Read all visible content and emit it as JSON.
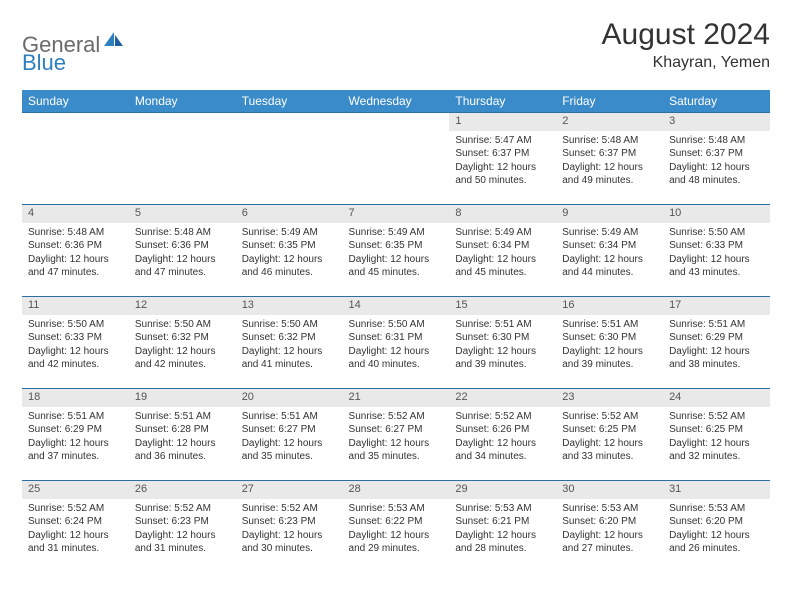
{
  "logo": {
    "text1": "General",
    "text2": "Blue"
  },
  "title": "August 2024",
  "location": "Khayran, Yemen",
  "colors": {
    "header_bg": "#3a8bc9",
    "header_text": "#ffffff",
    "daynum_bg": "#e9e9e9",
    "border": "#2f6fa0",
    "logo_gray": "#6a6a6a",
    "logo_blue": "#2f7fbf"
  },
  "weekdays": [
    "Sunday",
    "Monday",
    "Tuesday",
    "Wednesday",
    "Thursday",
    "Friday",
    "Saturday"
  ],
  "weeks": [
    {
      "nums": [
        "",
        "",
        "",
        "",
        "1",
        "2",
        "3"
      ],
      "cells": [
        null,
        null,
        null,
        null,
        {
          "sunrise": "5:47 AM",
          "sunset": "6:37 PM",
          "daylight": "12 hours and 50 minutes."
        },
        {
          "sunrise": "5:48 AM",
          "sunset": "6:37 PM",
          "daylight": "12 hours and 49 minutes."
        },
        {
          "sunrise": "5:48 AM",
          "sunset": "6:37 PM",
          "daylight": "12 hours and 48 minutes."
        }
      ]
    },
    {
      "nums": [
        "4",
        "5",
        "6",
        "7",
        "8",
        "9",
        "10"
      ],
      "cells": [
        {
          "sunrise": "5:48 AM",
          "sunset": "6:36 PM",
          "daylight": "12 hours and 47 minutes."
        },
        {
          "sunrise": "5:48 AM",
          "sunset": "6:36 PM",
          "daylight": "12 hours and 47 minutes."
        },
        {
          "sunrise": "5:49 AM",
          "sunset": "6:35 PM",
          "daylight": "12 hours and 46 minutes."
        },
        {
          "sunrise": "5:49 AM",
          "sunset": "6:35 PM",
          "daylight": "12 hours and 45 minutes."
        },
        {
          "sunrise": "5:49 AM",
          "sunset": "6:34 PM",
          "daylight": "12 hours and 45 minutes."
        },
        {
          "sunrise": "5:49 AM",
          "sunset": "6:34 PM",
          "daylight": "12 hours and 44 minutes."
        },
        {
          "sunrise": "5:50 AM",
          "sunset": "6:33 PM",
          "daylight": "12 hours and 43 minutes."
        }
      ]
    },
    {
      "nums": [
        "11",
        "12",
        "13",
        "14",
        "15",
        "16",
        "17"
      ],
      "cells": [
        {
          "sunrise": "5:50 AM",
          "sunset": "6:33 PM",
          "daylight": "12 hours and 42 minutes."
        },
        {
          "sunrise": "5:50 AM",
          "sunset": "6:32 PM",
          "daylight": "12 hours and 42 minutes."
        },
        {
          "sunrise": "5:50 AM",
          "sunset": "6:32 PM",
          "daylight": "12 hours and 41 minutes."
        },
        {
          "sunrise": "5:50 AM",
          "sunset": "6:31 PM",
          "daylight": "12 hours and 40 minutes."
        },
        {
          "sunrise": "5:51 AM",
          "sunset": "6:30 PM",
          "daylight": "12 hours and 39 minutes."
        },
        {
          "sunrise": "5:51 AM",
          "sunset": "6:30 PM",
          "daylight": "12 hours and 39 minutes."
        },
        {
          "sunrise": "5:51 AM",
          "sunset": "6:29 PM",
          "daylight": "12 hours and 38 minutes."
        }
      ]
    },
    {
      "nums": [
        "18",
        "19",
        "20",
        "21",
        "22",
        "23",
        "24"
      ],
      "cells": [
        {
          "sunrise": "5:51 AM",
          "sunset": "6:29 PM",
          "daylight": "12 hours and 37 minutes."
        },
        {
          "sunrise": "5:51 AM",
          "sunset": "6:28 PM",
          "daylight": "12 hours and 36 minutes."
        },
        {
          "sunrise": "5:51 AM",
          "sunset": "6:27 PM",
          "daylight": "12 hours and 35 minutes."
        },
        {
          "sunrise": "5:52 AM",
          "sunset": "6:27 PM",
          "daylight": "12 hours and 35 minutes."
        },
        {
          "sunrise": "5:52 AM",
          "sunset": "6:26 PM",
          "daylight": "12 hours and 34 minutes."
        },
        {
          "sunrise": "5:52 AM",
          "sunset": "6:25 PM",
          "daylight": "12 hours and 33 minutes."
        },
        {
          "sunrise": "5:52 AM",
          "sunset": "6:25 PM",
          "daylight": "12 hours and 32 minutes."
        }
      ]
    },
    {
      "nums": [
        "25",
        "26",
        "27",
        "28",
        "29",
        "30",
        "31"
      ],
      "cells": [
        {
          "sunrise": "5:52 AM",
          "sunset": "6:24 PM",
          "daylight": "12 hours and 31 minutes."
        },
        {
          "sunrise": "5:52 AM",
          "sunset": "6:23 PM",
          "daylight": "12 hours and 31 minutes."
        },
        {
          "sunrise": "5:52 AM",
          "sunset": "6:23 PM",
          "daylight": "12 hours and 30 minutes."
        },
        {
          "sunrise": "5:53 AM",
          "sunset": "6:22 PM",
          "daylight": "12 hours and 29 minutes."
        },
        {
          "sunrise": "5:53 AM",
          "sunset": "6:21 PM",
          "daylight": "12 hours and 28 minutes."
        },
        {
          "sunrise": "5:53 AM",
          "sunset": "6:20 PM",
          "daylight": "12 hours and 27 minutes."
        },
        {
          "sunrise": "5:53 AM",
          "sunset": "6:20 PM",
          "daylight": "12 hours and 26 minutes."
        }
      ]
    }
  ]
}
